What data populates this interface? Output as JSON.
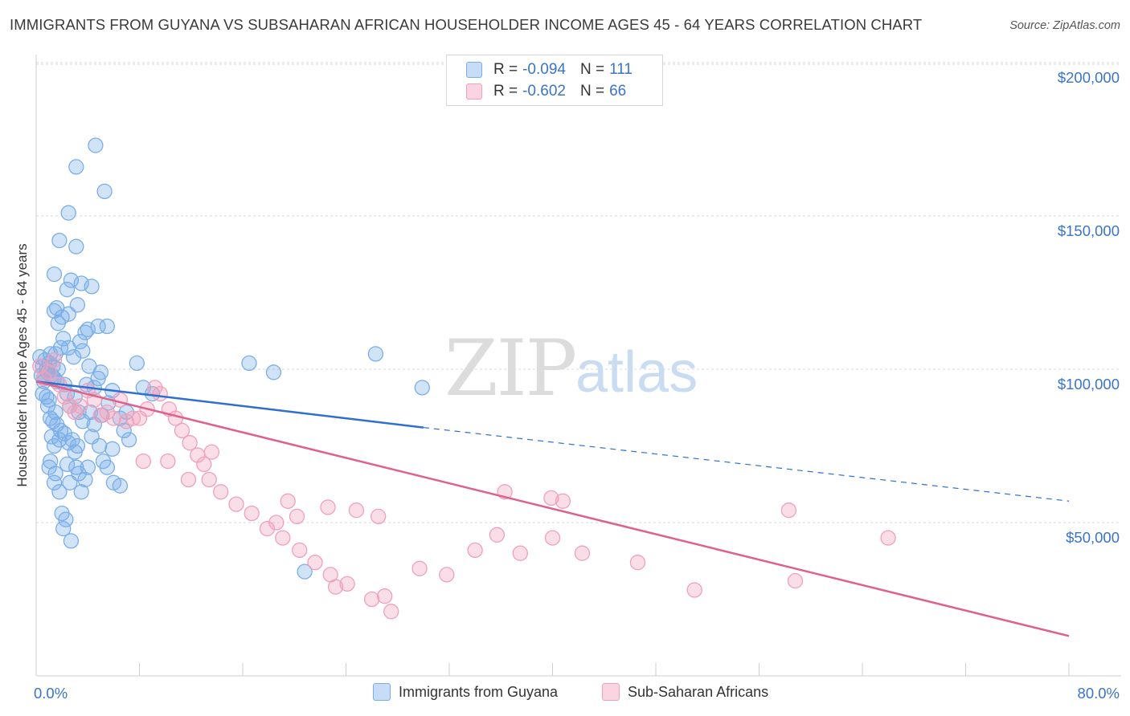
{
  "title": "IMMIGRANTS FROM GUYANA VS SUBSAHARAN AFRICAN HOUSEHOLDER INCOME AGES 45 - 64 YEARS CORRELATION CHART",
  "source": "Source: ZipAtlas.com",
  "watermark": {
    "zip": "ZIP",
    "atlas": "atlas"
  },
  "legend": {
    "rows": [
      {
        "r_label": "R =",
        "r_value": "-0.094",
        "n_label": "N =",
        "n_value": "111",
        "color": "#7aaee8"
      },
      {
        "r_label": "R =",
        "r_value": "-0.602",
        "n_label": "N =",
        "n_value": "66",
        "color": "#f0a0ba"
      }
    ]
  },
  "bottom_legend": {
    "series1": "Immigrants from Guyana",
    "series2": "Sub-Saharan Africans"
  },
  "colors": {
    "blue": "#7aaee8",
    "blue_line": "#2e6fd0",
    "pink": "#f0a0ba",
    "pink_line": "#e0608c",
    "axis_text": "#3a74c8"
  },
  "chart_data": {
    "type": "scatter",
    "title": "IMMIGRANTS FROM GUYANA VS SUBSAHARAN AFRICAN HOUSEHOLDER INCOME AGES 45 - 64 YEARS CORRELATION CHART",
    "xlabel": "",
    "ylabel": "Householder Income Ages 45 - 64 years",
    "xlim": [
      0,
      80
    ],
    "ylim": [
      0,
      210000
    ],
    "x_tick_labels": [
      "0.0%",
      "80.0%"
    ],
    "y_ticks": [
      50000,
      100000,
      150000,
      200000
    ],
    "y_tick_labels": [
      "$50,000",
      "$100,000",
      "$150,000",
      "$200,000"
    ],
    "grid": true,
    "series": [
      {
        "name": "Immigrants from Guyana",
        "trend": {
          "x": [
            0,
            30
          ],
          "y": [
            96000,
            81000
          ],
          "dashed_to": [
            80,
            57000
          ]
        },
        "points": [
          [
            0.3,
            104000
          ],
          [
            0.4,
            98000
          ],
          [
            0.5,
            101000
          ],
          [
            0.6,
            97000
          ],
          [
            0.7,
            103000
          ],
          [
            0.8,
            100000
          ],
          [
            0.9,
            99000
          ],
          [
            1.0,
            102000
          ],
          [
            1.1,
            105000
          ],
          [
            0.6,
            96000
          ],
          [
            0.5,
            92000
          ],
          [
            0.8,
            91000
          ],
          [
            1.0,
            90000
          ],
          [
            1.2,
            98000
          ],
          [
            1.3,
            101000
          ],
          [
            1.4,
            97000
          ],
          [
            1.5,
            105000
          ],
          [
            1.6,
            96000
          ],
          [
            1.7,
            100000
          ],
          [
            0.9,
            88000
          ],
          [
            1.1,
            84000
          ],
          [
            1.3,
            83000
          ],
          [
            1.5,
            86000
          ],
          [
            1.6,
            82000
          ],
          [
            1.2,
            78000
          ],
          [
            1.4,
            75000
          ],
          [
            1.1,
            70000
          ],
          [
            1.0,
            68000
          ],
          [
            1.5,
            66000
          ],
          [
            1.4,
            63000
          ],
          [
            1.8,
            60000
          ],
          [
            2.0,
            53000
          ],
          [
            2.3,
            51000
          ],
          [
            2.1,
            48000
          ],
          [
            2.7,
            44000
          ],
          [
            1.8,
            77000
          ],
          [
            2.2,
            79000
          ],
          [
            2.5,
            76000
          ],
          [
            2.8,
            77000
          ],
          [
            3.0,
            73000
          ],
          [
            3.2,
            75000
          ],
          [
            2.4,
            69000
          ],
          [
            3.1,
            68000
          ],
          [
            3.3,
            66000
          ],
          [
            2.6,
            63000
          ],
          [
            3.5,
            60000
          ],
          [
            3.8,
            64000
          ],
          [
            4.0,
            68000
          ],
          [
            2.2,
            95000
          ],
          [
            2.4,
            92000
          ],
          [
            2.6,
            88000
          ],
          [
            3.0,
            91000
          ],
          [
            3.3,
            86000
          ],
          [
            3.6,
            83000
          ],
          [
            4.2,
            86000
          ],
          [
            4.5,
            82000
          ],
          [
            5.1,
            85000
          ],
          [
            5.6,
            89000
          ],
          [
            5.9,
            93000
          ],
          [
            4.3,
            78000
          ],
          [
            4.9,
            75000
          ],
          [
            5.2,
            70000
          ],
          [
            5.5,
            68000
          ],
          [
            6.0,
            63000
          ],
          [
            6.5,
            62000
          ],
          [
            4.5,
            94000
          ],
          [
            4.8,
            97000
          ],
          [
            5.0,
            99000
          ],
          [
            1.9,
            107000
          ],
          [
            2.1,
            110000
          ],
          [
            2.5,
            107000
          ],
          [
            2.9,
            104000
          ],
          [
            3.4,
            109000
          ],
          [
            3.6,
            106000
          ],
          [
            4.1,
            101000
          ],
          [
            3.8,
            112000
          ],
          [
            1.7,
            115000
          ],
          [
            2.0,
            117000
          ],
          [
            2.5,
            118000
          ],
          [
            1.4,
            119000
          ],
          [
            1.6,
            120000
          ],
          [
            3.2,
            121000
          ],
          [
            2.4,
            126000
          ],
          [
            2.7,
            129000
          ],
          [
            3.5,
            128000
          ],
          [
            4.3,
            127000
          ],
          [
            1.4,
            131000
          ],
          [
            1.8,
            142000
          ],
          [
            4.8,
            114000
          ],
          [
            4.0,
            113000
          ],
          [
            3.1,
            140000
          ],
          [
            2.5,
            151000
          ],
          [
            3.1,
            166000
          ],
          [
            4.6,
            173000
          ],
          [
            5.3,
            158000
          ],
          [
            16.5,
            102000
          ],
          [
            18.4,
            99000
          ],
          [
            26.3,
            105000
          ],
          [
            29.9,
            94000
          ],
          [
            20.8,
            34000
          ],
          [
            5.5,
            114000
          ],
          [
            7.8,
            102000
          ],
          [
            8.3,
            94000
          ],
          [
            9.0,
            92000
          ],
          [
            7.0,
            86000
          ],
          [
            6.5,
            84000
          ],
          [
            6.8,
            80000
          ],
          [
            7.2,
            77000
          ],
          [
            5.9,
            74000
          ],
          [
            3.9,
            95000
          ],
          [
            1.9,
            80000
          ]
        ]
      },
      {
        "name": "Sub-Saharan Africans",
        "trend": {
          "x": [
            0,
            80
          ],
          "y": [
            96000,
            13000
          ]
        },
        "points": [
          [
            0.3,
            101000
          ],
          [
            0.6,
            97000
          ],
          [
            1.0,
            99000
          ],
          [
            1.4,
            103000
          ],
          [
            1.8,
            95000
          ],
          [
            2.2,
            91000
          ],
          [
            2.6,
            88000
          ],
          [
            3.0,
            86000
          ],
          [
            3.4,
            88000
          ],
          [
            4.0,
            93000
          ],
          [
            4.5,
            90000
          ],
          [
            5.0,
            85000
          ],
          [
            5.5,
            86000
          ],
          [
            6.0,
            84000
          ],
          [
            6.5,
            90000
          ],
          [
            7.0,
            83000
          ],
          [
            7.5,
            84000
          ],
          [
            8.0,
            84000
          ],
          [
            8.6,
            87000
          ],
          [
            9.2,
            94000
          ],
          [
            9.6,
            92000
          ],
          [
            10.3,
            87000
          ],
          [
            10.8,
            84000
          ],
          [
            11.3,
            80000
          ],
          [
            11.9,
            76000
          ],
          [
            12.5,
            72000
          ],
          [
            13.0,
            69000
          ],
          [
            13.6,
            73000
          ],
          [
            8.3,
            70000
          ],
          [
            10.2,
            70000
          ],
          [
            11.8,
            64000
          ],
          [
            13.4,
            64000
          ],
          [
            14.3,
            60000
          ],
          [
            15.5,
            56000
          ],
          [
            16.7,
            53000
          ],
          [
            17.9,
            48000
          ],
          [
            19.1,
            45000
          ],
          [
            20.4,
            41000
          ],
          [
            21.6,
            37000
          ],
          [
            22.8,
            33000
          ],
          [
            24.1,
            30000
          ],
          [
            26.0,
            25000
          ],
          [
            27.5,
            21000
          ],
          [
            18.6,
            50000
          ],
          [
            20.2,
            52000
          ],
          [
            22.6,
            55000
          ],
          [
            24.8,
            54000
          ],
          [
            26.5,
            52000
          ],
          [
            19.5,
            57000
          ],
          [
            23.2,
            29000
          ],
          [
            27.0,
            26000
          ],
          [
            29.7,
            35000
          ],
          [
            31.8,
            33000
          ],
          [
            34.0,
            41000
          ],
          [
            35.7,
            46000
          ],
          [
            37.5,
            40000
          ],
          [
            40.0,
            45000
          ],
          [
            42.3,
            40000
          ],
          [
            46.6,
            37000
          ],
          [
            58.3,
            54000
          ],
          [
            66.0,
            45000
          ],
          [
            58.8,
            31000
          ],
          [
            51.0,
            28000
          ],
          [
            40.8,
            57000
          ],
          [
            36.3,
            60000
          ],
          [
            39.9,
            58000
          ]
        ]
      }
    ]
  }
}
